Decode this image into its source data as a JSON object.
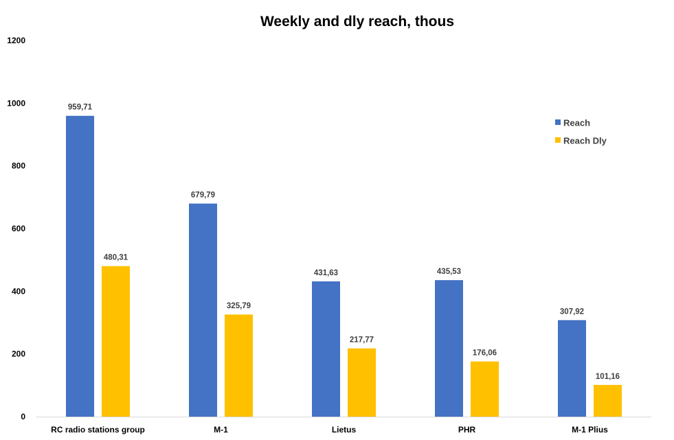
{
  "chart_data": {
    "type": "bar",
    "title": "Weekly and dly reach, thous",
    "xlabel": "",
    "ylabel": "",
    "categories": [
      "RC radio stations group",
      "M-1",
      "Lietus",
      "PHR",
      "M-1 Plius"
    ],
    "series": [
      {
        "name": "Reach",
        "color": "#4472C4",
        "values": [
          959.71,
          679.79,
          431.63,
          435.53,
          307.92
        ],
        "labels": [
          "959,71",
          "679,79",
          "431,63",
          "435,53",
          "307,92"
        ]
      },
      {
        "name": "Reach Dly",
        "color": "#FFC000",
        "values": [
          480.31,
          325.79,
          217.77,
          176.06,
          101.16
        ],
        "labels": [
          "480,31",
          "325,79",
          "217,77",
          "176,06",
          "101,16"
        ]
      }
    ],
    "ylim": [
      0,
      1200
    ],
    "yticks": [
      0,
      200,
      400,
      600,
      800,
      1000,
      1200
    ],
    "ytick_labels": [
      "0",
      "200",
      "400",
      "600",
      "800",
      "1000",
      "1200"
    ],
    "grid": false,
    "legend_position": "top-right"
  }
}
